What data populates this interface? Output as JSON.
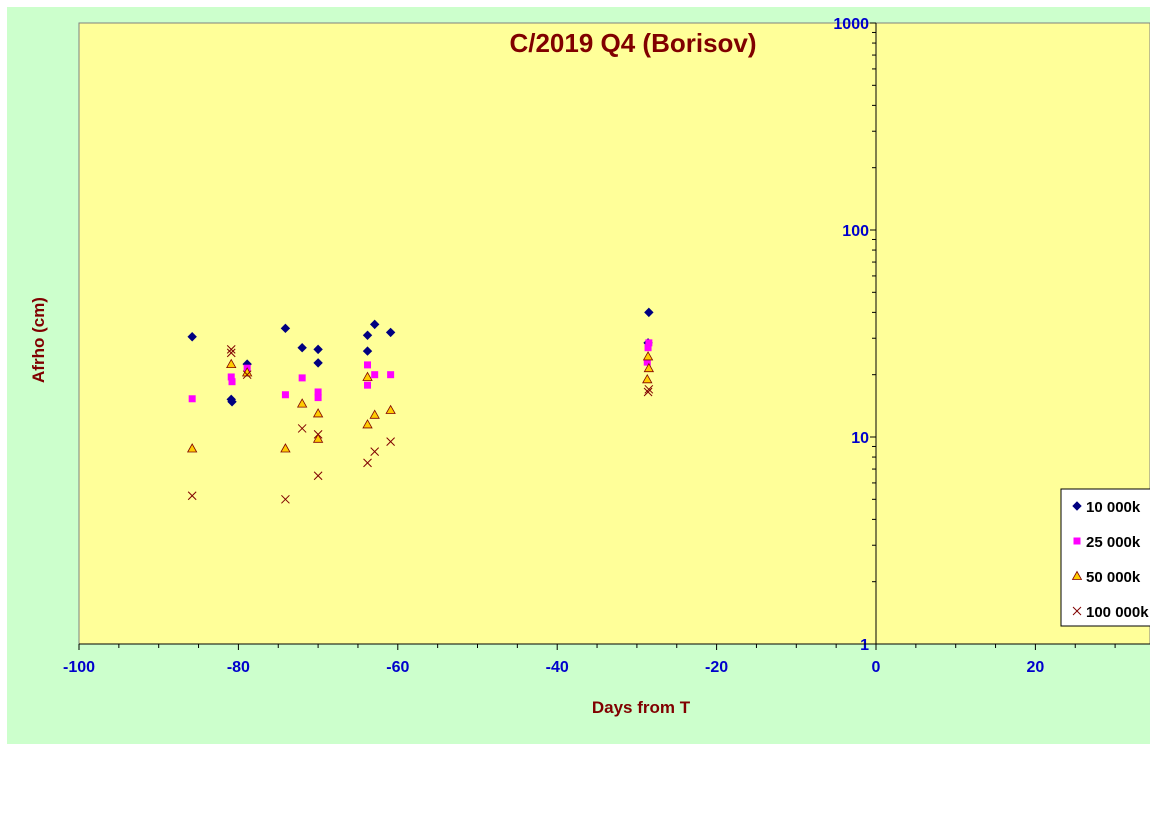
{
  "chart_data": {
    "type": "scatter",
    "title": "C/2019 Q4 (Borisov)",
    "xlabel": "Days from T",
    "ylabel": "Afrho (cm)",
    "xlim": [
      -100,
      40
    ],
    "ylim": [
      1,
      1000
    ],
    "y_scale": "log",
    "x_ticks": [
      -100,
      -80,
      -60,
      -40,
      -20,
      0,
      20
    ],
    "y_ticks": [
      1,
      10,
      100,
      1000
    ],
    "grid": false,
    "legend_position": "right",
    "colors": {
      "figure_bg": "#ccffcc",
      "plot_bg": "#ffff99",
      "title": "#800000",
      "axis_title": "#800000",
      "tick_label": "#0000cc"
    },
    "series": [
      {
        "name": "10 000k",
        "marker": "diamond",
        "color": "#000080",
        "x": [
          -85.8,
          -80.9,
          -80.8,
          -78.9,
          -74.1,
          -72.0,
          -70.0,
          -70.0,
          -63.8,
          -63.8,
          -62.9,
          -60.9,
          -28.6,
          -28.5
        ],
        "y": [
          30.5,
          15.2,
          14.8,
          22.5,
          33.5,
          27.0,
          26.5,
          22.8,
          31.0,
          26.0,
          35.0,
          32.0,
          28.5,
          40.0
        ]
      },
      {
        "name": "25 000k",
        "marker": "square",
        "color": "#ff00ff",
        "x": [
          -85.8,
          -80.9,
          -80.8,
          -78.9,
          -74.1,
          -72.0,
          -70.0,
          -70.0,
          -63.8,
          -63.8,
          -62.9,
          -60.9,
          -28.6,
          -28.5,
          -28.7
        ],
        "y": [
          15.3,
          19.5,
          18.5,
          21.5,
          16.0,
          19.3,
          16.5,
          15.5,
          22.3,
          17.8,
          20.0,
          20.0,
          27.0,
          28.5,
          23.0
        ]
      },
      {
        "name": "50 000k",
        "marker": "triangle",
        "color": "#ffcc00",
        "x": [
          -85.8,
          -80.9,
          -78.9,
          -74.1,
          -72.0,
          -70.0,
          -70.0,
          -63.8,
          -63.8,
          -62.9,
          -60.9,
          -28.6,
          -28.5,
          -28.7
        ],
        "y": [
          8.8,
          22.5,
          20.5,
          8.8,
          14.5,
          13.0,
          9.8,
          11.5,
          19.5,
          12.8,
          13.5,
          24.5,
          21.5,
          19.0
        ]
      },
      {
        "name": "100 000k",
        "marker": "x",
        "color": "#800000",
        "x": [
          -85.8,
          -80.9,
          -80.9,
          -78.9,
          -74.1,
          -72.0,
          -70.0,
          -70.0,
          -63.8,
          -62.9,
          -60.9,
          -28.6,
          -28.5
        ],
        "y": [
          5.2,
          26.5,
          25.5,
          20.0,
          5.0,
          11.0,
          10.3,
          6.5,
          7.5,
          8.5,
          9.5,
          16.5,
          17.0
        ]
      }
    ]
  }
}
